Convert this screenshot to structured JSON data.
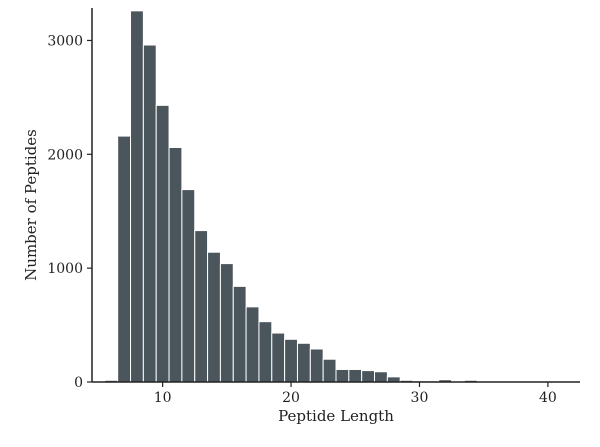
{
  "chart_data": {
    "type": "bar",
    "xlabel": "Peptide Length",
    "ylabel": "Number of Peptides",
    "xlim": [
      4.5,
      42.5
    ],
    "ylim": [
      0,
      3250
    ],
    "x_ticks": [
      10,
      20,
      30,
      40
    ],
    "y_ticks": [
      0,
      1000,
      2000,
      3000
    ],
    "bar_color": "#4b555c",
    "grid": false,
    "bins": [
      {
        "x": 6,
        "value": 15
      },
      {
        "x": 7,
        "value": 2160
      },
      {
        "x": 8,
        "value": 3260
      },
      {
        "x": 9,
        "value": 2960
      },
      {
        "x": 10,
        "value": 2430
      },
      {
        "x": 11,
        "value": 2060
      },
      {
        "x": 12,
        "value": 1690
      },
      {
        "x": 13,
        "value": 1330
      },
      {
        "x": 14,
        "value": 1140
      },
      {
        "x": 15,
        "value": 1040
      },
      {
        "x": 16,
        "value": 840
      },
      {
        "x": 17,
        "value": 660
      },
      {
        "x": 18,
        "value": 530
      },
      {
        "x": 19,
        "value": 430
      },
      {
        "x": 20,
        "value": 375
      },
      {
        "x": 21,
        "value": 340
      },
      {
        "x": 22,
        "value": 290
      },
      {
        "x": 23,
        "value": 200
      },
      {
        "x": 24,
        "value": 110
      },
      {
        "x": 25,
        "value": 110
      },
      {
        "x": 26,
        "value": 100
      },
      {
        "x": 27,
        "value": 90
      },
      {
        "x": 28,
        "value": 45
      },
      {
        "x": 29,
        "value": 15
      },
      {
        "x": 30,
        "value": 10
      },
      {
        "x": 31,
        "value": 10
      },
      {
        "x": 32,
        "value": 20
      },
      {
        "x": 33,
        "value": 5
      },
      {
        "x": 34,
        "value": 15
      },
      {
        "x": 35,
        "value": 3
      },
      {
        "x": 36,
        "value": 3
      },
      {
        "x": 37,
        "value": 3
      },
      {
        "x": 38,
        "value": 2
      },
      {
        "x": 39,
        "value": 2
      },
      {
        "x": 40,
        "value": 2
      }
    ]
  }
}
